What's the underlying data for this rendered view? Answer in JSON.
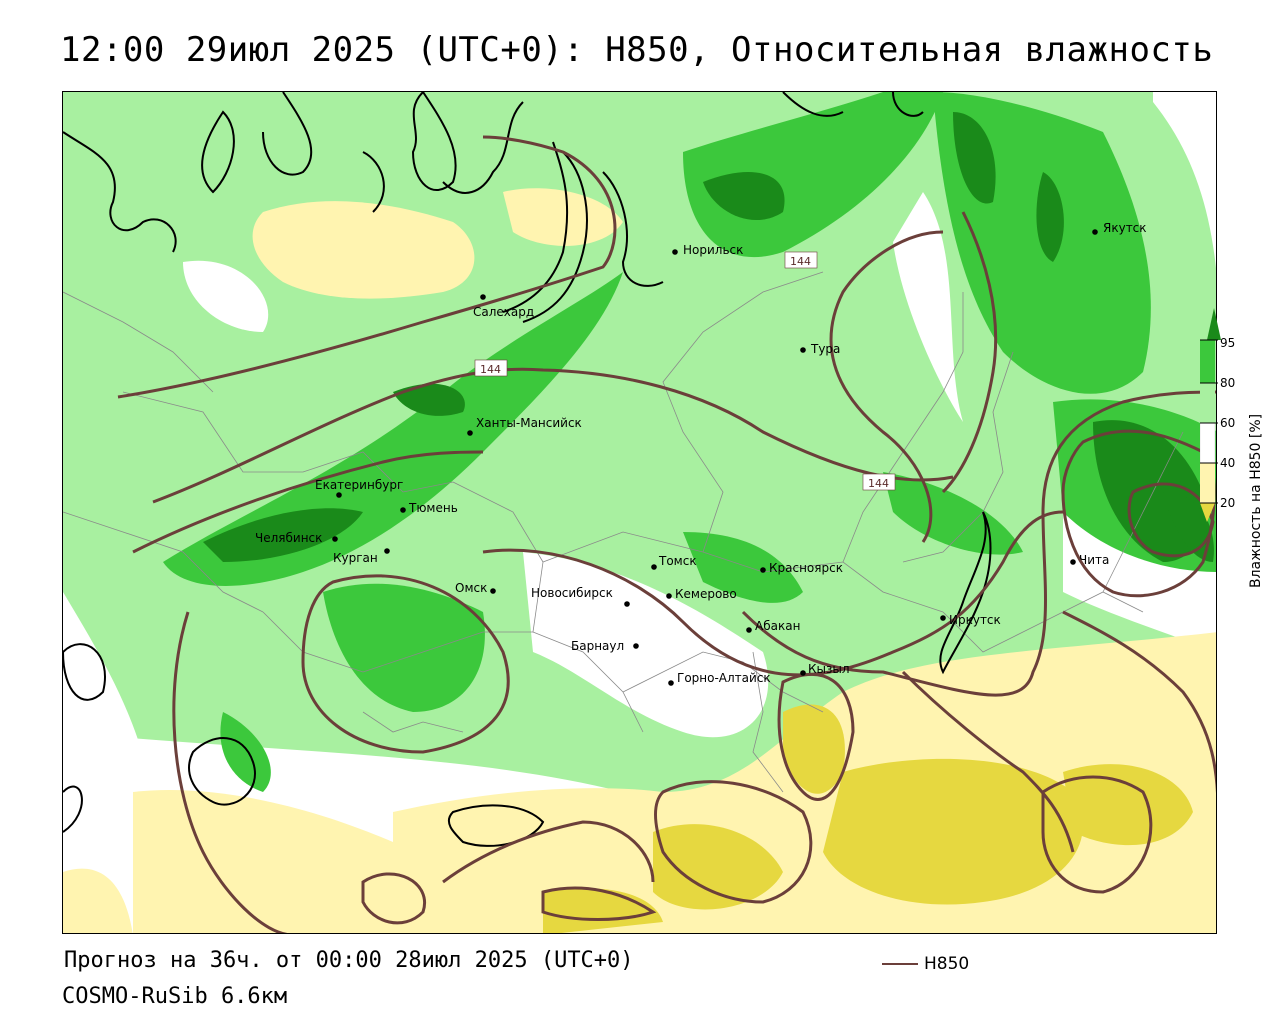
{
  "title": "12:00 29июл 2025 (UTC+0): H850, Относительная влажность",
  "footer": {
    "forecast": "Прогноз на 36ч. от 00:00 28июл 2025 (UTC+0)",
    "model": "COSMO-RuSib 6.6км",
    "contour_key_label": "H850"
  },
  "legend": {
    "title": "Влажность на H850 [%]",
    "ticks": [
      "95",
      "80",
      "60",
      "40",
      "20"
    ],
    "colors": {
      "c95": "#1a8a1a",
      "c80": "#3cc83c",
      "c60": "#a8f0a0",
      "c40": "#ffffff",
      "c20": "#fff4b0",
      "c0": "#e6d840"
    }
  },
  "colors": {
    "contour": "#6b3f3a",
    "coast": "#000000",
    "border": "#8a8a8a"
  },
  "contour_labels": [
    "144",
    "144",
    "144"
  ],
  "cities": [
    {
      "name": "Якутск"
    },
    {
      "name": "Норильск"
    },
    {
      "name": "Салехард"
    },
    {
      "name": "Тура"
    },
    {
      "name": "Ханты-Мансийск"
    },
    {
      "name": "Екатеринбург"
    },
    {
      "name": "Тюмень"
    },
    {
      "name": "Челябинск"
    },
    {
      "name": "Курган"
    },
    {
      "name": "Омск"
    },
    {
      "name": "Новосибирск"
    },
    {
      "name": "Томск"
    },
    {
      "name": "Кемерово"
    },
    {
      "name": "Красноярск"
    },
    {
      "name": "Абакан"
    },
    {
      "name": "Барнаул"
    },
    {
      "name": "Горно-Алтайск"
    },
    {
      "name": "Кызыл"
    },
    {
      "name": "Иркутск"
    },
    {
      "name": "Чита"
    }
  ]
}
